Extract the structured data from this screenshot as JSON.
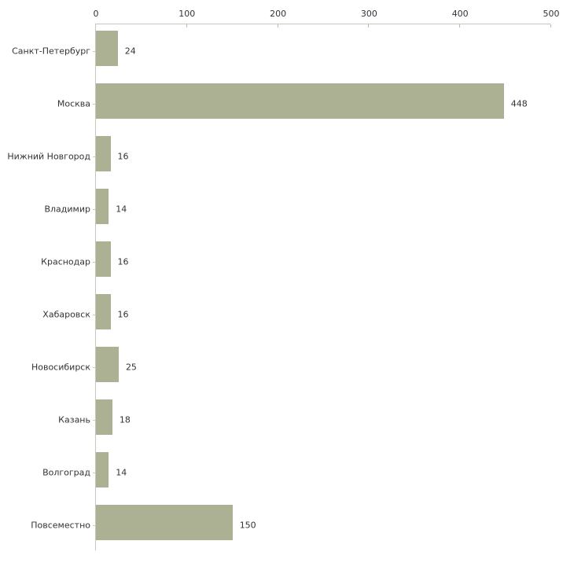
{
  "chart_data": {
    "type": "bar",
    "orientation": "horizontal",
    "title": "",
    "xlabel": "",
    "ylabel": "",
    "categories": [
      "Санкт-Петербург",
      "Москва",
      "Нижний Новгород",
      "Владимир",
      "Краснодар",
      "Хабаровск",
      "Новосибирск",
      "Казань",
      "Волгоград",
      "Повсеместно"
    ],
    "values": [
      24,
      448,
      16,
      14,
      16,
      16,
      25,
      18,
      14,
      150
    ],
    "value_labels": [
      "24",
      "448",
      "16",
      "14",
      "16",
      "16",
      "25",
      "18",
      "14",
      "150"
    ],
    "xlim": [
      0,
      500
    ],
    "x_ticks": [
      0,
      100,
      200,
      300,
      400,
      500
    ],
    "x_tick_labels": [
      "0",
      "100",
      "200",
      "300",
      "400",
      "500"
    ],
    "axis_position": "top",
    "grid": false,
    "legend": false,
    "colors": {
      "bar_fill": "#acb194",
      "axis_line": "#c6c6bd",
      "x_tick": "#b9bd9b",
      "y_tick": "#c9c9c3",
      "text": "#333333",
      "background": "#ffffff"
    }
  }
}
